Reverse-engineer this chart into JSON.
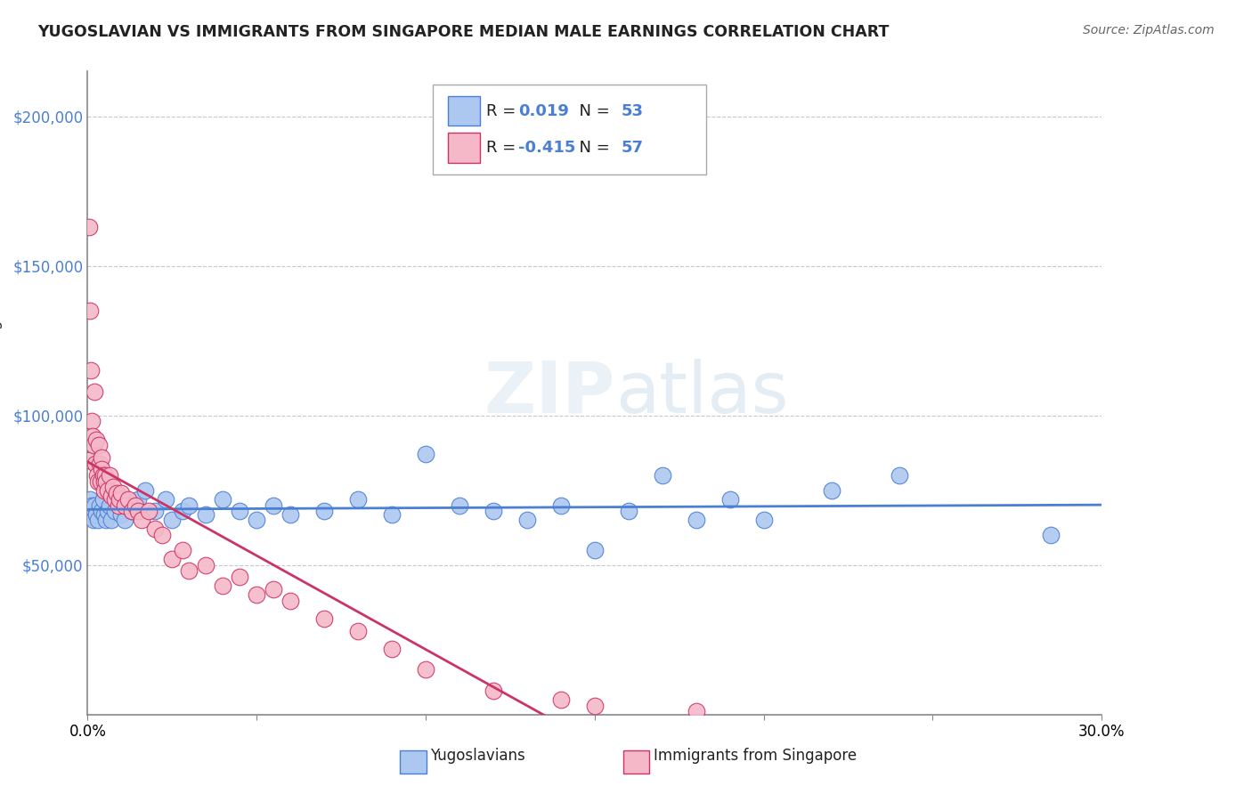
{
  "title": "YUGOSLAVIAN VS IMMIGRANTS FROM SINGAPORE MEDIAN MALE EARNINGS CORRELATION CHART",
  "source": "Source: ZipAtlas.com",
  "ylabel": "Median Male Earnings",
  "xlim": [
    0.0,
    30.0
  ],
  "ylim": [
    0,
    215000
  ],
  "blue_R": "0.019",
  "blue_N": "53",
  "pink_R": "-0.415",
  "pink_N": "57",
  "legend_labels": [
    "Yugoslavians",
    "Immigrants from Singapore"
  ],
  "blue_color": "#adc8f0",
  "pink_color": "#f5b8c8",
  "blue_line_color": "#4a7fd4",
  "pink_line_color": "#cc3366",
  "grid_color": "#c8c8c8",
  "background_color": "#ffffff",
  "blue_scatter_x": [
    0.05,
    0.08,
    0.1,
    0.12,
    0.15,
    0.18,
    0.2,
    0.25,
    0.3,
    0.35,
    0.4,
    0.45,
    0.5,
    0.55,
    0.6,
    0.65,
    0.7,
    0.8,
    0.9,
    1.0,
    1.1,
    1.2,
    1.3,
    1.5,
    1.7,
    2.0,
    2.3,
    2.5,
    2.8,
    3.0,
    3.5,
    4.0,
    4.5,
    5.0,
    5.5,
    6.0,
    7.0,
    8.0,
    9.0,
    10.0,
    11.0,
    12.0,
    13.0,
    14.0,
    15.0,
    16.0,
    17.0,
    18.0,
    19.0,
    20.0,
    22.0,
    24.0,
    28.5
  ],
  "blue_scatter_y": [
    68000,
    72000,
    66000,
    70000,
    68000,
    65000,
    70000,
    67000,
    65000,
    70000,
    68000,
    72000,
    67000,
    65000,
    68000,
    70000,
    65000,
    68000,
    72000,
    67000,
    65000,
    70000,
    68000,
    72000,
    75000,
    68000,
    72000,
    65000,
    68000,
    70000,
    67000,
    72000,
    68000,
    65000,
    70000,
    67000,
    68000,
    72000,
    67000,
    87000,
    70000,
    68000,
    65000,
    70000,
    55000,
    68000,
    80000,
    65000,
    72000,
    65000,
    75000,
    80000,
    60000
  ],
  "pink_scatter_x": [
    0.03,
    0.05,
    0.08,
    0.1,
    0.12,
    0.15,
    0.18,
    0.2,
    0.22,
    0.25,
    0.28,
    0.3,
    0.32,
    0.35,
    0.38,
    0.4,
    0.42,
    0.45,
    0.48,
    0.5,
    0.52,
    0.55,
    0.6,
    0.65,
    0.7,
    0.75,
    0.8,
    0.85,
    0.9,
    0.95,
    1.0,
    1.1,
    1.2,
    1.3,
    1.4,
    1.5,
    1.6,
    1.8,
    2.0,
    2.2,
    2.5,
    2.8,
    3.0,
    3.5,
    4.0,
    4.5,
    5.0,
    5.5,
    6.0,
    7.0,
    8.0,
    9.0,
    10.0,
    12.0,
    14.0,
    15.0,
    18.0
  ],
  "pink_scatter_y": [
    163000,
    85000,
    135000,
    115000,
    98000,
    93000,
    90000,
    108000,
    84000,
    92000,
    80000,
    78000,
    90000,
    84000,
    78000,
    86000,
    82000,
    80000,
    78000,
    75000,
    80000,
    78000,
    75000,
    80000,
    73000,
    76000,
    72000,
    74000,
    70000,
    72000,
    74000,
    70000,
    72000,
    68000,
    70000,
    68000,
    65000,
    68000,
    62000,
    60000,
    52000,
    55000,
    48000,
    50000,
    43000,
    46000,
    40000,
    42000,
    38000,
    32000,
    28000,
    22000,
    15000,
    8000,
    5000,
    3000,
    1000
  ]
}
